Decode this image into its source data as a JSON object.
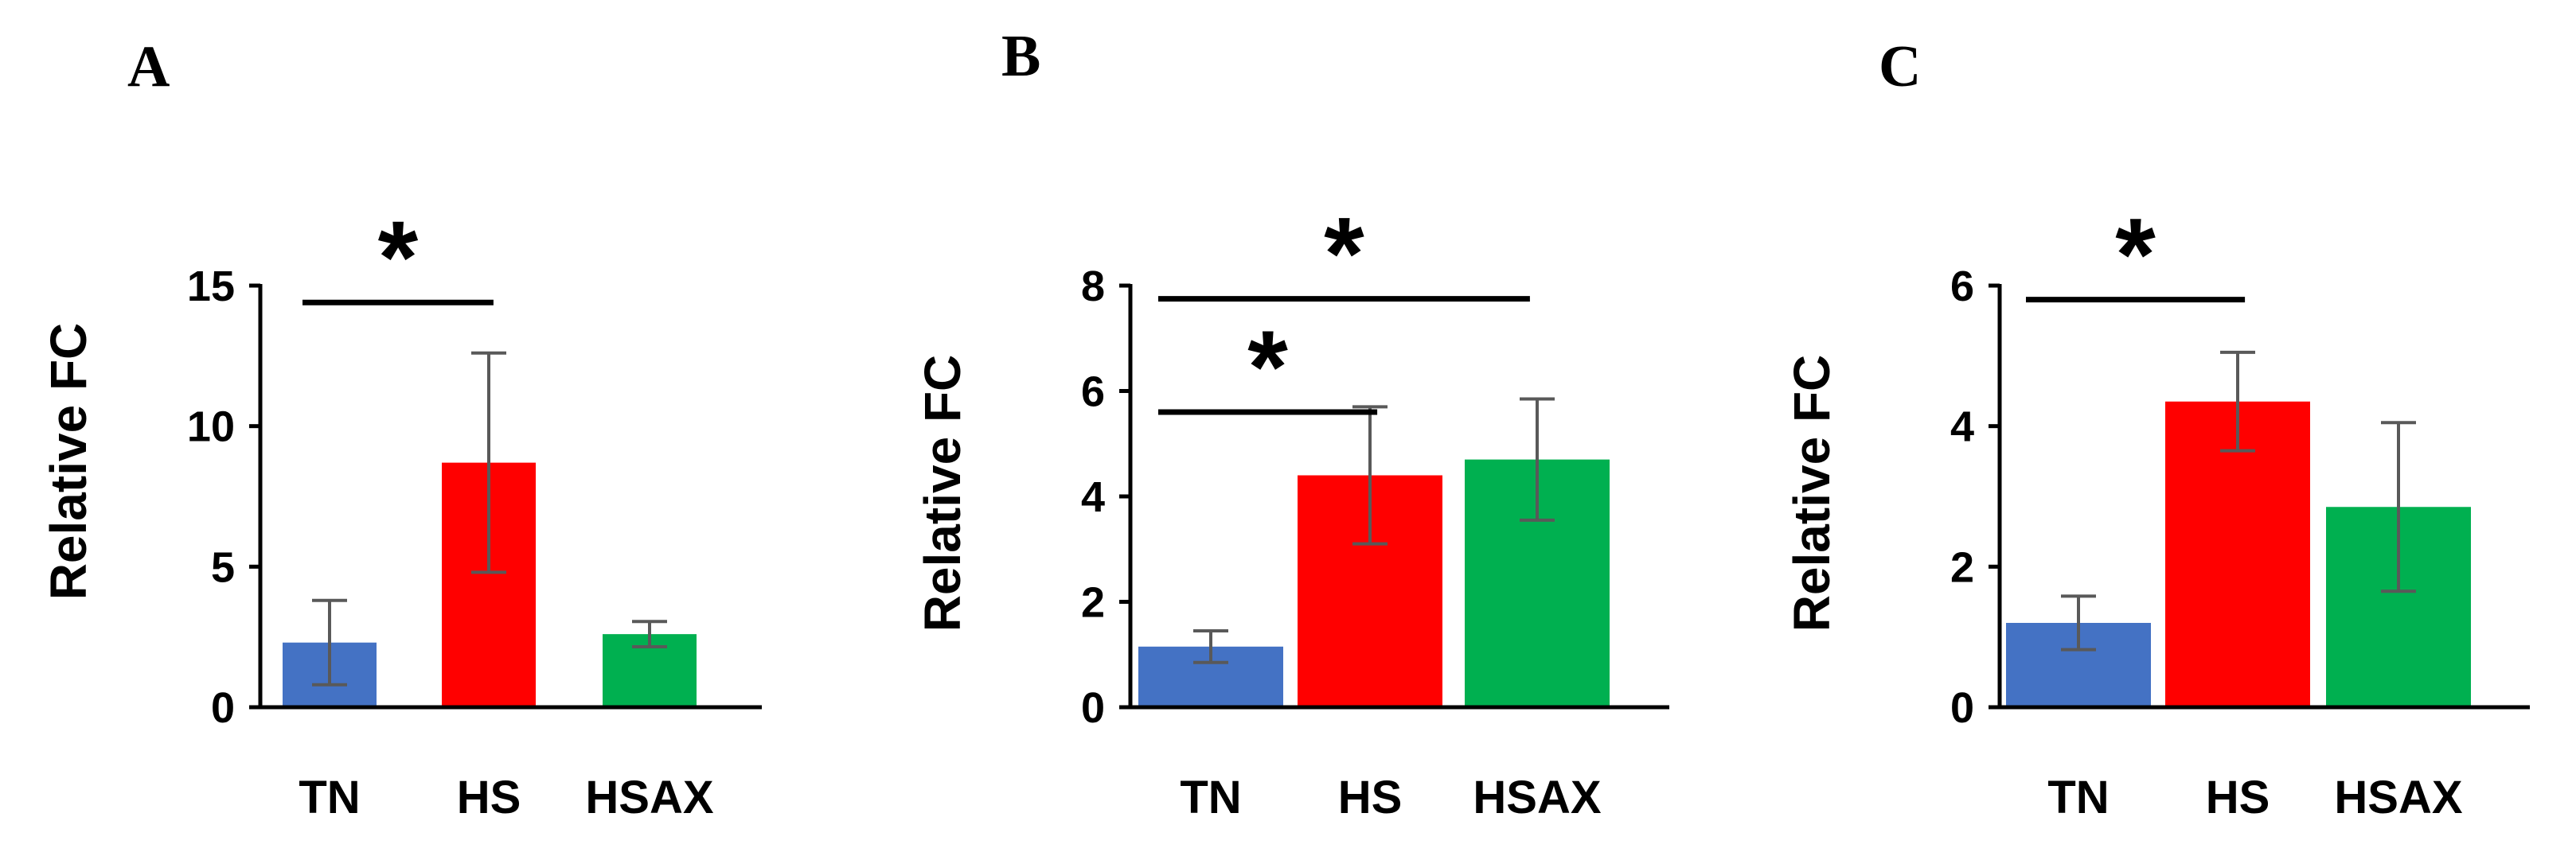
{
  "chart_data": [
    {
      "type": "bar",
      "panel": "A",
      "ylabel": "Relative FC",
      "categories": [
        "TN",
        "HS",
        "HSAX"
      ],
      "values": [
        2.3,
        8.7,
        2.6
      ],
      "errors": [
        1.5,
        3.9,
        0.45
      ],
      "ylim": [
        0,
        15
      ],
      "yticks": [
        0,
        5,
        10,
        15
      ],
      "significance": [
        {
          "from": "TN",
          "to": "HS",
          "y": 14.4,
          "label": "*"
        }
      ]
    },
    {
      "type": "bar",
      "panel": "B",
      "ylabel": "Relative FC",
      "categories": [
        "TN",
        "HS",
        "HSAX"
      ],
      "values": [
        1.15,
        4.4,
        4.7
      ],
      "errors": [
        0.3,
        1.3,
        1.15
      ],
      "ylim": [
        0,
        8
      ],
      "yticks": [
        0,
        2,
        4,
        6,
        8
      ],
      "significance": [
        {
          "from": "TN",
          "to": "HSAX",
          "y": 7.75,
          "label": "*"
        },
        {
          "from": "TN",
          "to": "HS",
          "y": 5.6,
          "label": "*"
        }
      ]
    },
    {
      "type": "bar",
      "panel": "C",
      "ylabel": "Relative FC",
      "categories": [
        "TN",
        "HS",
        "HSAX"
      ],
      "values": [
        1.2,
        4.35,
        2.85
      ],
      "errors": [
        0.38,
        0.7,
        1.2
      ],
      "ylim": [
        0,
        6
      ],
      "yticks": [
        0,
        2,
        4,
        6
      ],
      "significance": [
        {
          "from": "TN",
          "to": "HS",
          "y": 5.8,
          "label": "*"
        }
      ]
    }
  ],
  "colors": {
    "TN": "#4472c4",
    "HS": "#ff0000",
    "HSAX": "#00b050",
    "error_bar": "#595959",
    "axis": "#000000"
  }
}
